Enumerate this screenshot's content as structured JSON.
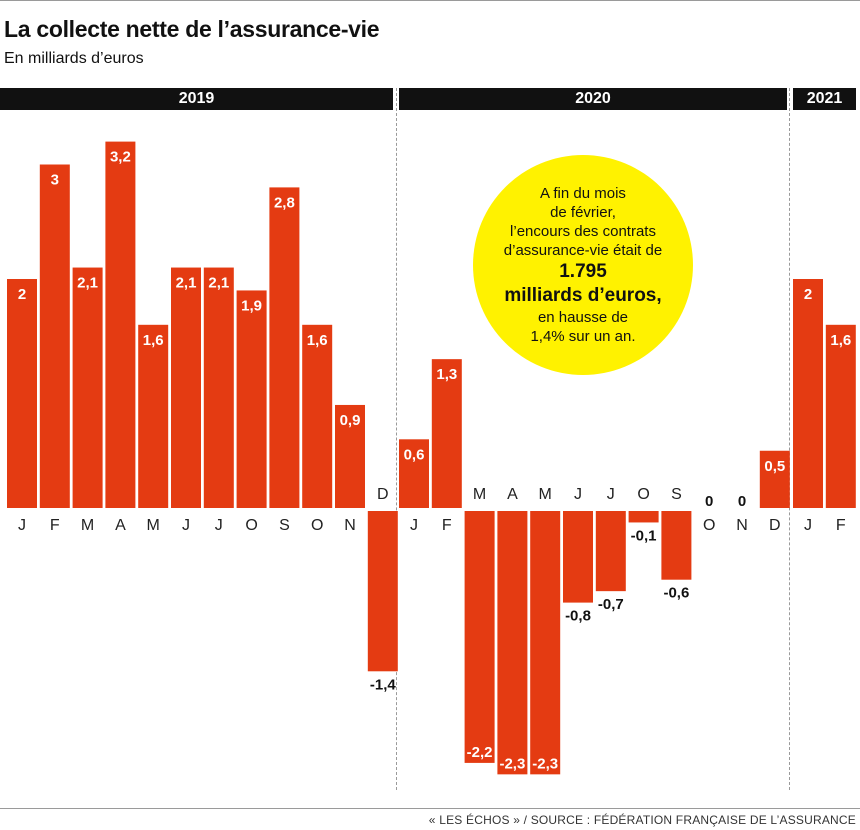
{
  "header": {
    "title": "La collecte nette de l’assurance-vie",
    "subtitle": "En milliards d’euros"
  },
  "years": [
    "2019",
    "2020",
    "2021"
  ],
  "callout": {
    "line1": "A fin du mois",
    "line2": "de février,",
    "line3": "l’encours des contrats",
    "line4": "d’assurance-vie était de",
    "highlight1": "1.795",
    "highlight2": "milliards d’euros,",
    "line5": "en hausse de",
    "line6": "1,4% sur un an."
  },
  "source": "« LES ÉCHOS » / SOURCE : FÉDÉRATION FRANÇAISE DE L’ASSURANCE",
  "colors": {
    "bar": "#e43b12",
    "callout": "#fff200",
    "year_bar": "#111111"
  },
  "chart_data": {
    "type": "bar",
    "categories": [
      "J",
      "F",
      "M",
      "A",
      "M",
      "J",
      "J",
      "O",
      "S",
      "O",
      "N",
      "D",
      "J",
      "F",
      "M",
      "A",
      "M",
      "J",
      "J",
      "O",
      "S",
      "O",
      "N",
      "D",
      "J",
      "F"
    ],
    "values": [
      2,
      3,
      2.1,
      3.2,
      1.6,
      2.1,
      2.1,
      1.9,
      2.8,
      1.6,
      0.9,
      -1.4,
      0.6,
      1.3,
      -2.2,
      -2.3,
      -2.3,
      -0.8,
      -0.7,
      -0.1,
      -0.6,
      0,
      0,
      0.5,
      2,
      1.6
    ],
    "value_labels": [
      "2",
      "3",
      "2,1",
      "3,2",
      "1,6",
      "2,1",
      "2,1",
      "1,9",
      "2,8",
      "1,6",
      "0,9",
      "-1,4",
      "0,6",
      "1,3",
      "-2,2",
      "-2,3",
      "-2,3",
      "-0,8",
      "-0,7",
      "-0,1",
      "-0,6",
      "0",
      "0",
      "0,5",
      "2",
      "1,6"
    ],
    "year_groups": [
      {
        "year": "2019",
        "count": 12
      },
      {
        "year": "2020",
        "count": 12
      },
      {
        "year": "2021",
        "count": 2
      }
    ],
    "ylim": [
      -2.4,
      3.4
    ],
    "grid": false
  }
}
